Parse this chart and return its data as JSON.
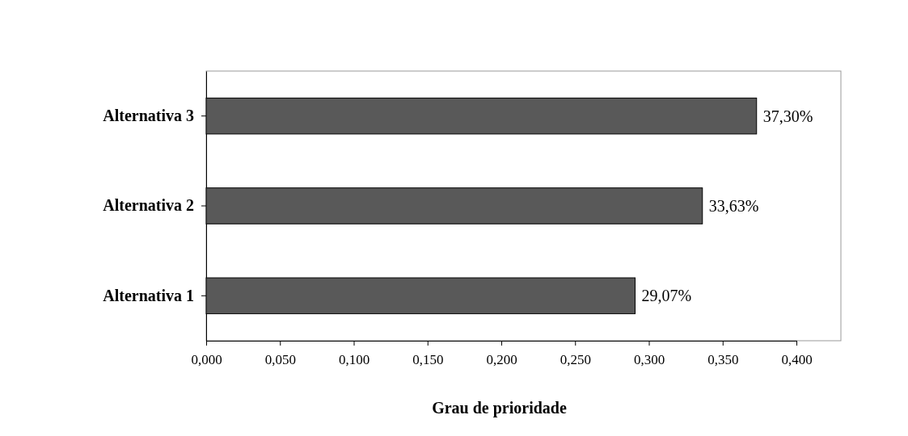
{
  "chart_data": {
    "type": "bar",
    "orientation": "horizontal",
    "xlabel": "Grau de prioridade",
    "categories": [
      "Alternativa 3",
      "Alternativa 2",
      "Alternativa 1"
    ],
    "values": [
      0.373,
      0.3363,
      0.2907
    ],
    "value_labels": [
      "37,30%",
      "33,63%",
      "29,07%"
    ],
    "color": "#595959",
    "xlim": [
      0,
      0.4
    ],
    "xticks": [
      {
        "value": 0,
        "label": "0,000"
      },
      {
        "value": 0.05,
        "label": "0,050"
      },
      {
        "value": 0.1,
        "label": "0,100"
      },
      {
        "value": 0.15,
        "label": "0,150"
      },
      {
        "value": 0.2,
        "label": "0,200"
      },
      {
        "value": 0.25,
        "label": "0,250"
      },
      {
        "value": 0.3,
        "label": "0,300"
      },
      {
        "value": 0.35,
        "label": "0,350"
      },
      {
        "value": 0.4,
        "label": "0,400"
      }
    ]
  }
}
